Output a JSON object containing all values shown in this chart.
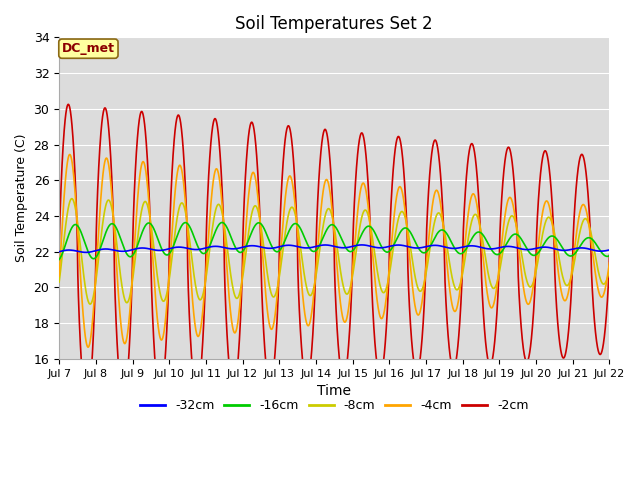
{
  "title": "Soil Temperatures Set 2",
  "xlabel": "Time",
  "ylabel": "Soil Temperature (C)",
  "ylim": [
    16,
    34
  ],
  "xlim": [
    0,
    15
  ],
  "yticks": [
    16,
    18,
    20,
    22,
    24,
    26,
    28,
    30,
    32,
    34
  ],
  "xtick_labels": [
    "Jul 7",
    "Jul 8",
    "Jul 9",
    "Jul 10",
    "Jul 11",
    "Jul 12",
    "Jul 13",
    "Jul 14",
    "Jul 15",
    "Jul 16",
    "Jul 17",
    "Jul 18",
    "Jul 19",
    "Jul 20",
    "Jul 21",
    "Jul 22"
  ],
  "annotation_text": "DC_met",
  "annotation_color": "#8B0000",
  "annotation_bg": "#FFFFA0",
  "bg_color": "#DCDCDC",
  "series_colors": {
    "-32cm": "#0000FF",
    "-16cm": "#00CC00",
    "-8cm": "#CCCC00",
    "-4cm": "#FFA500",
    "-2cm": "#CC0000"
  },
  "legend_entries": [
    "-32cm",
    "-16cm",
    "-8cm",
    "-4cm",
    "-2cm"
  ],
  "n_points": 3600,
  "n_days": 15,
  "base_32": 22.0,
  "base_16": 22.5,
  "base_8": 22.0,
  "base_4": 22.0,
  "base_2": 21.8,
  "amp_32_start": 0.08,
  "amp_32_end": 0.08,
  "amp_16_start": 1.0,
  "amp_16_end": 0.5,
  "amp_8_start": 3.0,
  "amp_8_end": 1.8,
  "amp_4_start": 5.5,
  "amp_4_end": 2.5,
  "amp_2_start": 8.5,
  "amp_2_end": 5.5,
  "phase_32": 0.0,
  "phase_16": -1.2,
  "phase_8": -0.6,
  "phase_4": -0.25,
  "phase_2": 0.0,
  "figwidth": 6.4,
  "figheight": 4.8,
  "dpi": 100
}
